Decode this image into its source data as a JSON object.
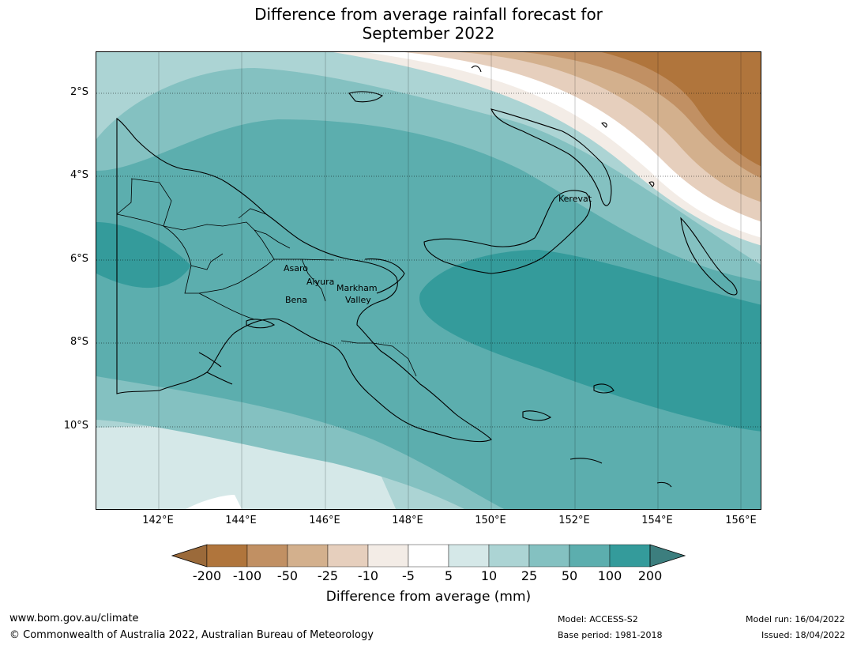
{
  "title_line1": "Difference from average rainfall forecast for",
  "title_line2": "September 2022",
  "lat_labels": [
    "2°S",
    "4°S",
    "6°S",
    "8°S",
    "10°S"
  ],
  "lon_labels": [
    "142°E",
    "144°E",
    "146°E",
    "148°E",
    "150°E",
    "152°E",
    "154°E",
    "156°E"
  ],
  "places": [
    "Kerevat",
    "Asaro",
    "Aiyura",
    "Bena",
    "Markham",
    "Valley"
  ],
  "colorbar": {
    "labels": [
      "-200",
      "-100",
      "-50",
      "-25",
      "-10",
      "-5",
      "5",
      "10",
      "25",
      "50",
      "100",
      "200"
    ],
    "colors": [
      "#b0753c",
      "#c19063",
      "#d3b08d",
      "#e6cfbd",
      "#f3ece6",
      "#ffffff",
      "#d5e8e8",
      "#acd4d4",
      "#84c1c1",
      "#5caeae",
      "#349b9b",
      "#3c7e7e",
      "#9b6a3a"
    ],
    "title": "Difference from average (mm)"
  },
  "footer": {
    "url": "www.bom.gov.au/climate",
    "copyright": "© Commonwealth of Australia 2022, Australian Bureau of Meteorology",
    "model": "Model: ACCESS-S2",
    "base_period": "Base period: 1981-2018",
    "model_run": "Model run: 16/04/2022",
    "issued": "Issued: 18/04/2022"
  }
}
